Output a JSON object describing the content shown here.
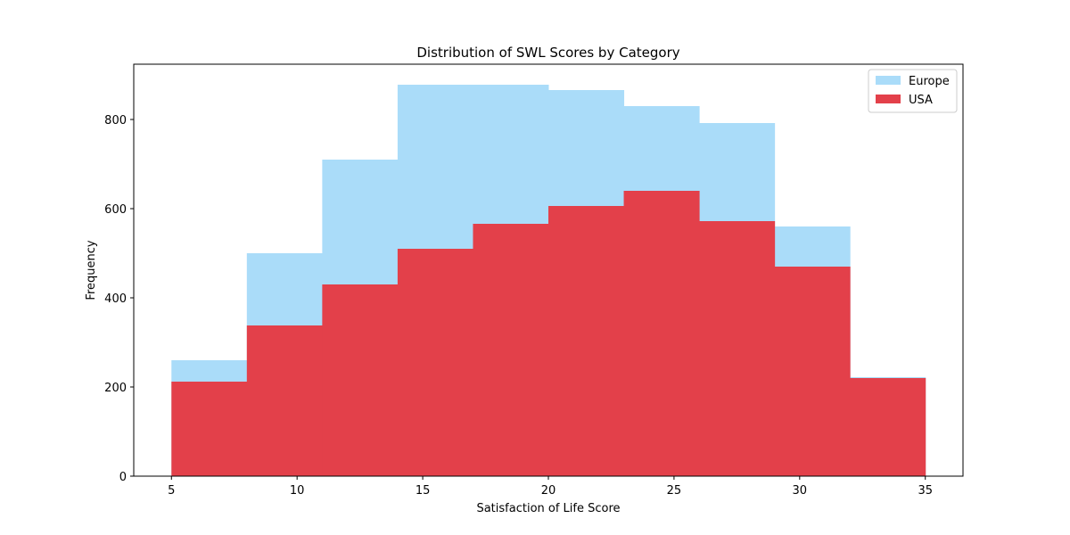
{
  "chart_data": {
    "type": "bar",
    "subtype": "histogram-overlay",
    "title": "Distribution of SWL Scores by Category",
    "xlabel": "Satisfaction of Life Score",
    "ylabel": "Frequency",
    "bin_edges": [
      5,
      8,
      11,
      14,
      17,
      20,
      23,
      26,
      29,
      32,
      35
    ],
    "series": [
      {
        "name": "Europe",
        "color": "#aadcf9",
        "values": [
          260,
          500,
          710,
          878,
          878,
          866,
          830,
          792,
          560,
          222
        ]
      },
      {
        "name": "USA",
        "color": "#e3404a",
        "values": [
          212,
          338,
          430,
          510,
          566,
          606,
          640,
          572,
          470,
          220
        ]
      }
    ],
    "xlim": [
      3.5,
      36.5
    ],
    "ylim": [
      0,
      924
    ],
    "xticks": [
      5,
      10,
      15,
      20,
      25,
      30,
      35
    ],
    "yticks": [
      0,
      200,
      400,
      600,
      800
    ],
    "grid": false,
    "legend_position": "top-right"
  }
}
